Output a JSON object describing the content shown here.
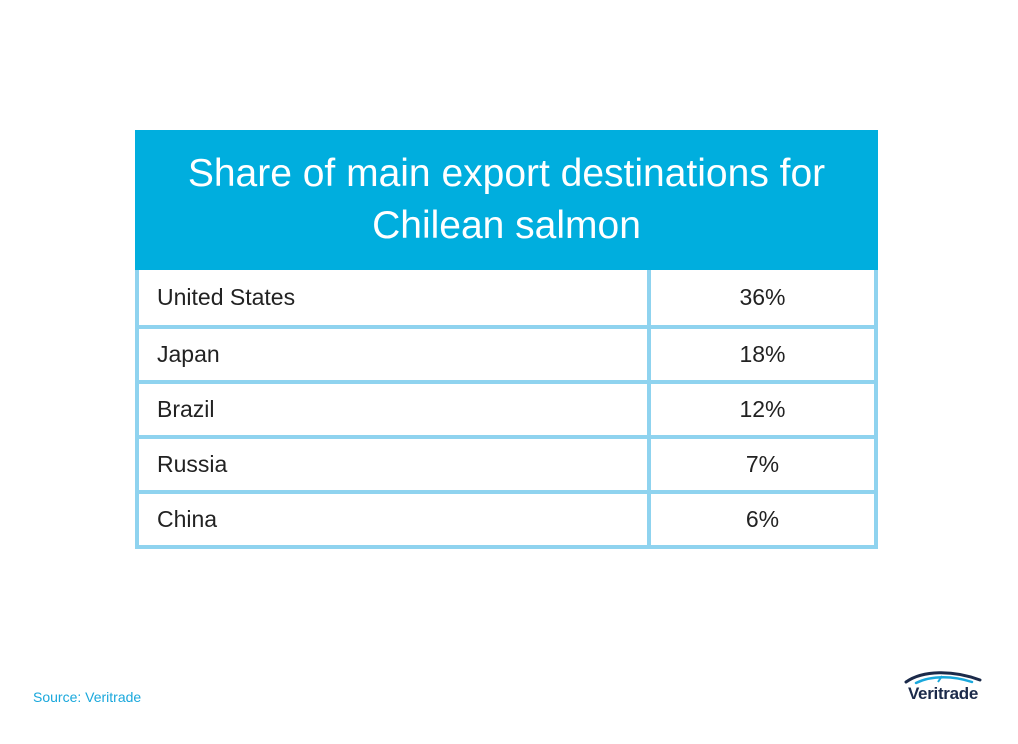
{
  "chart_data": {
    "type": "table",
    "title": "Share of main export destinations for Chilean salmon",
    "columns": [
      "",
      ""
    ],
    "rows": [
      {
        "country": "United States",
        "share": "36%"
      },
      {
        "country": "Japan",
        "share": "18%"
      },
      {
        "country": "Brazil",
        "share": "12%"
      },
      {
        "country": "Russia",
        "share": "7%"
      },
      {
        "country": "China",
        "share": "6%"
      }
    ]
  },
  "footer": {
    "source": "Source: Veritrade",
    "logo_text": "Veritrade"
  },
  "colors": {
    "header_bg": "#00aede",
    "grid_lines": "#8fd3ef",
    "source_text": "#1aa8dc",
    "logo_text": "#1b2a4a"
  }
}
